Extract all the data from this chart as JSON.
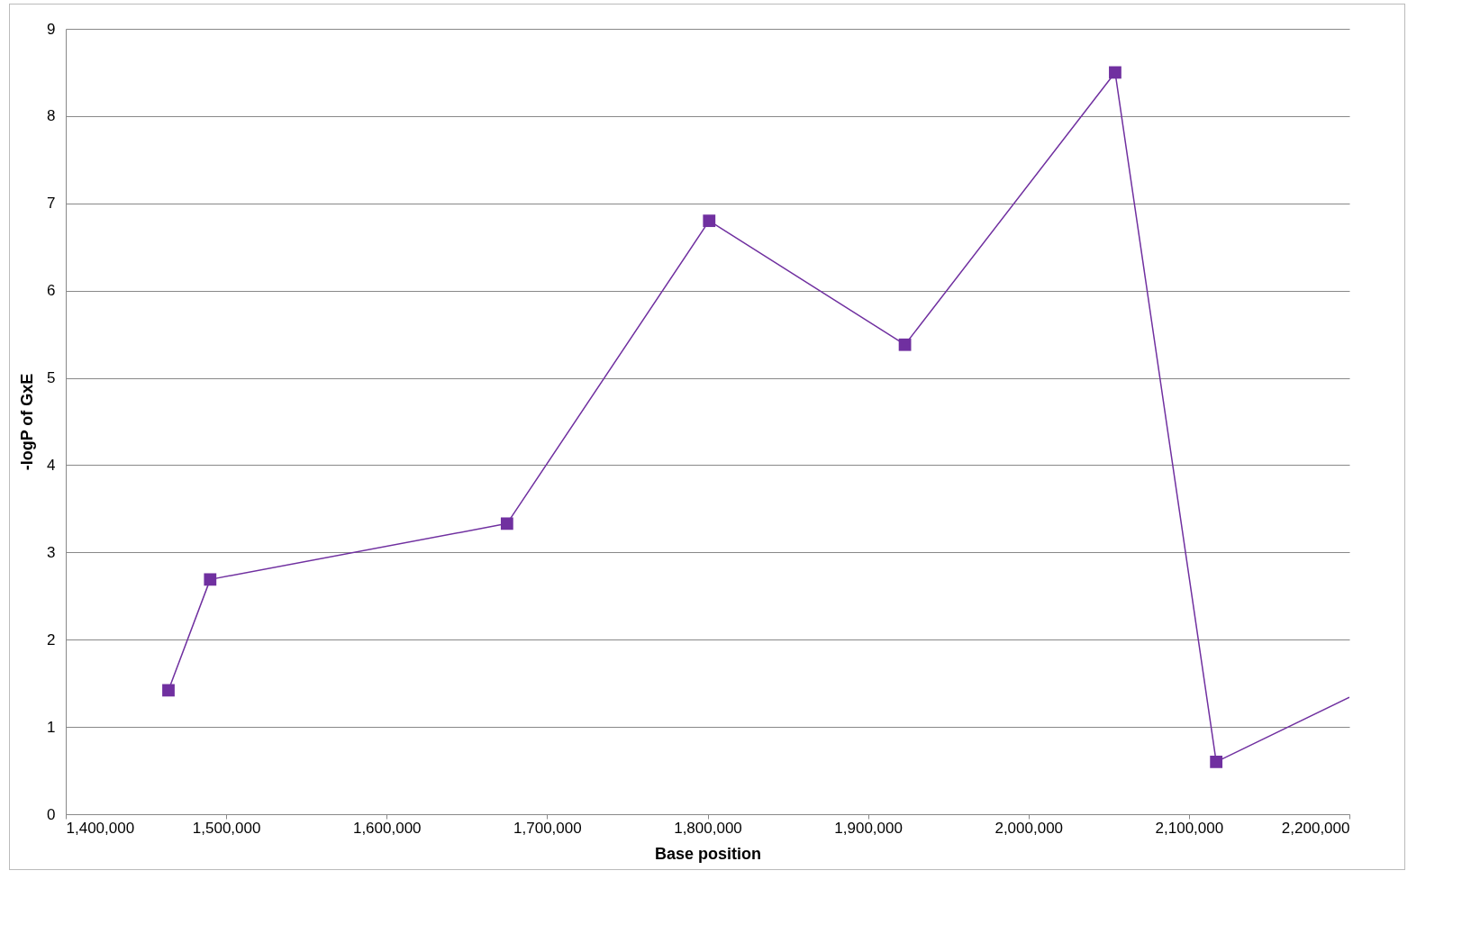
{
  "chart_data": {
    "type": "line",
    "xlabel": "Base position",
    "ylabel": "-logP of GxE",
    "x": [
      1464000,
      1490000,
      1675000,
      1801000,
      1923000,
      2054000,
      2117000,
      2200000
    ],
    "series": [
      {
        "color": "#7030a0",
        "values": [
          1.42,
          2.69,
          3.33,
          6.8,
          5.38,
          8.5,
          0.6,
          1.34
        ]
      }
    ],
    "xlim": [
      1400000,
      2200000
    ],
    "xticks": [
      {
        "value": 1400000,
        "label": "1,400,000"
      },
      {
        "value": 1500000,
        "label": "1,500,000"
      },
      {
        "value": 1600000,
        "label": "1,600,000"
      },
      {
        "value": 1700000,
        "label": "1,700,000"
      },
      {
        "value": 1800000,
        "label": "1,800,000"
      },
      {
        "value": 1900000,
        "label": "1,900,000"
      },
      {
        "value": 2000000,
        "label": "2,000,000"
      },
      {
        "value": 2100000,
        "label": "2,100,000"
      },
      {
        "value": 2200000,
        "label": "2,200,000"
      }
    ],
    "ylim": [
      0,
      9
    ],
    "yticks": [
      0,
      1,
      2,
      3,
      4,
      5,
      6,
      7,
      8,
      9
    ],
    "grid": "y",
    "marker": "square",
    "line_style": "solid"
  }
}
